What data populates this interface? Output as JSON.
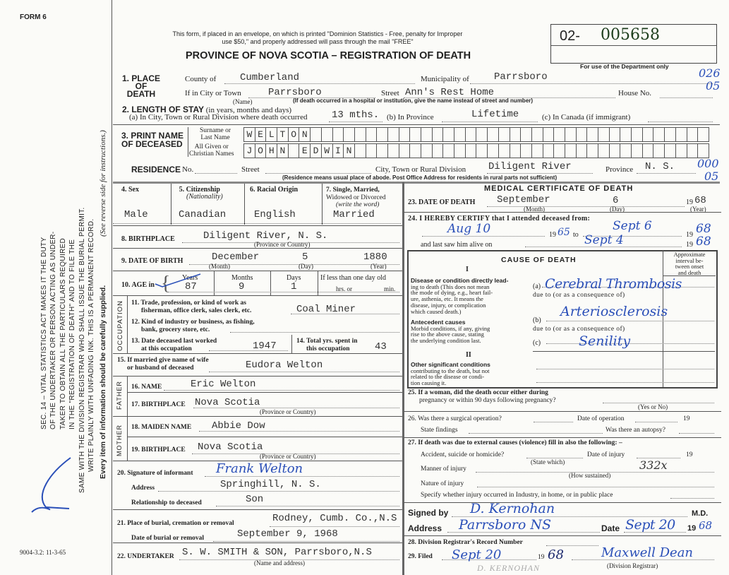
{
  "form_label": "FORM 6",
  "notice": [
    "This form, if placed in an envelope, on which is printed \"Dominion Statistics - Free, penalty for Improper",
    "use $50,\" and properly addressed will pass through the mail \"FREE\""
  ],
  "title": "PROVINCE OF NOVA SCOTIA – REGISTRATION OF DEATH",
  "registration_number": {
    "prefix": "02-",
    "number": "005658"
  },
  "department_note": "For use of the Department only",
  "margin_codes": {
    "a": "026",
    "b": "05",
    "c": "000",
    "d": "05"
  },
  "side_text": {
    "lines": [
      "SEC. 14 – VITAL STATISTICS ACT MAKES IT THE DUTY",
      "OF THE UNDERTAKER OR PERSON ACTING AS UNDER-",
      "TAKER TO OBTAIN ALL THE PARTICULARS REQUIRED",
      "IN THE \"REGISTRATION OF DEATH\" AND TO FILE THE",
      "SAME WITH THE DIVISION REGISTRAR WHO SHALL ISSUE THE BURIAL PERMIT.",
      "WRITE PLAINLY WITH UNFADING INK. THIS IS A PERMANENT RECORD."
    ],
    "every_item": "Every item of information should be carefully supplied.",
    "see_reverse": "(See reverse side for instructions.)",
    "form_code": "9004-3.2: 11-3-65"
  },
  "place_of_death": {
    "heading": [
      "1. PLACE",
      "OF",
      "DEATH"
    ],
    "county_label": "County of",
    "county": "Cumberland",
    "municipality_label": "Municipality of",
    "municipality": "Parrsboro",
    "city_label": "If in City or Town",
    "city": "Parrsboro",
    "name_note": "(Name)",
    "street_label": "Street",
    "street": "Ann's Rest Home",
    "house_label": "House No.",
    "institution_note": "(If death occurred in a hospital or institution, give the name instead of street and number)"
  },
  "length_of_stay": {
    "heading": "2. LENGTH OF STAY",
    "heading_note": "(in years, months and days)",
    "a_label": "(a) In City, Town or Rural Division where death occurred",
    "a": "13 mths.",
    "b_label": "(b) In Province",
    "b": "Lifetime",
    "c_label": "(c) In Canada (if immigrant)"
  },
  "name": {
    "heading": [
      "3. PRINT NAME",
      "OF DECEASED"
    ],
    "surname_label": [
      "Surname or",
      "Last Name"
    ],
    "given_label": [
      "All Given or",
      "Christian Names"
    ],
    "surname_letters": [
      "W",
      "E",
      "L",
      "T",
      "O",
      "N"
    ],
    "given_letters": [
      "J",
      "O",
      "H",
      "N",
      " ",
      "E",
      "D",
      "W",
      "I",
      "N"
    ]
  },
  "residence": {
    "heading": "RESIDENCE",
    "no_label": "No.",
    "street_label": "Street",
    "city_label": "City, Town or Rural Division",
    "city": "Diligent River",
    "province_label": "Province",
    "province": "N. S.",
    "note": "(Residence means usual place of abode. Post Office Address for residents in rural parts not sufficient)"
  },
  "personal": {
    "sex_label": "4. Sex",
    "sex": "Male",
    "citizenship_label": "5. Citizenship",
    "citizenship_note": "(Nationality)",
    "citizenship": "Canadian",
    "racial_label": "6. Racial Origin",
    "racial": "English",
    "marital_label": [
      "7. Single, Married,",
      "Widowed or Divorced",
      "(write the word)"
    ],
    "marital": "Married",
    "birthplace_label": "8. BIRTHPLACE",
    "birthplace": "Diligent River, N. S.",
    "prov_note": "(Province or Country)",
    "dob_label": "9. DATE OF BIRTH",
    "dob_month": "December",
    "dob_day": "5",
    "dob_year": "1880",
    "month_note": "(Month)",
    "day_note": "(Day)",
    "year_note": "(Year)",
    "age_label": "10. AGE in",
    "years_label": "Years",
    "years": "87",
    "months_label": "Months",
    "months": "9",
    "days_label": "Days",
    "days": "1",
    "less_label": "If less than one day old",
    "hrs_label": "hrs. or",
    "min_label": "min."
  },
  "occupation": {
    "side": "OCCUPATION",
    "q11": [
      "11. Trade, profession, or kind of work as",
      "fisherman, office clerk, sales clerk, etc."
    ],
    "trade": "Coal Miner",
    "q12": [
      "12. Kind of industry or business, as fishing,",
      "bank, grocery store, etc."
    ],
    "q13": [
      "13. Date deceased last worked",
      "at this occupation"
    ],
    "last_worked": "1947",
    "q14": [
      "14. Total yrs. spent in",
      "this occupation"
    ],
    "total_years": "43"
  },
  "spouse": {
    "label": [
      "15. If married give name of wife",
      "or husband of deceased"
    ],
    "name": "Eudora Welton"
  },
  "father": {
    "side": "FATHER",
    "name_label": "16. NAME",
    "name": "Eric Welton",
    "birthplace_label": "17. BIRTHPLACE",
    "birthplace": "Nova Scotia",
    "prov_note": "(Province or Country)"
  },
  "mother": {
    "side": "MOTHER",
    "name_label": "18. MAIDEN NAME",
    "name": "Abbie Dow",
    "birthplace_label": "19. BIRTHPLACE",
    "birthplace": "Nova Scotia",
    "prov_note": "(Province or Country)"
  },
  "informant": {
    "signature_label": "20. Signature of informant",
    "signature": "Frank Welton",
    "address_label": "Address",
    "address": "Springhill, N. S.",
    "relationship_label": "Relationship to deceased",
    "relationship": "Son"
  },
  "burial": {
    "place_label": "21. Place of burial, cremation or removal",
    "place": "Rodney, Cumb. Co.,N.S",
    "date_label": "Date of burial or removal",
    "date": "September 9, 1968"
  },
  "undertaker": {
    "label": "22. UNDERTAKER",
    "value": "S. W. SMITH & SON, Parrsboro,N.S",
    "note": "(Name and address)"
  },
  "medical": {
    "title": "MEDICAL CERTIFICATE OF DEATH",
    "dod_label": "23. DATE OF DEATH",
    "dod_month": "September",
    "dod_day": "6",
    "dod_year_prefix": "19",
    "dod_year": "68",
    "month_note": "(Month)",
    "day_note": "(Day)",
    "year_note": "(Year)",
    "certify_label": "24. I HEREBY CERTIFY that I attended deceased from:",
    "from": "Aug 10",
    "from_year_prefix": "19",
    "from_year": "65",
    "to_label": "to",
    "to": "Sept 6",
    "to_year_prefix": "19",
    "to_year": "68",
    "last_saw_label": "and last saw him alive on",
    "last_saw": "Sept 4",
    "last_saw_year_prefix": "19",
    "last_saw_year": "68"
  },
  "cause": {
    "title": "CAUSE OF DEATH",
    "part1": "I",
    "part2": "II",
    "interval_label": [
      "Approximate",
      "interval be-",
      "tween onset",
      "and death"
    ],
    "direct_heading": "Disease or condition directly lead-",
    "direct_text": [
      "ing to death (This does not mean",
      "the mode of dying, e.g., heart fail-",
      "ure, asthenia, etc. It means the",
      "disease, injury, or complication",
      "which caused death.)"
    ],
    "antecedent_heading": "Antecedent causes",
    "antecedent_text": [
      "Morbid conditions, if any, giving",
      "rise to the above cause, stating",
      "the underlying condition last."
    ],
    "other_heading": "Other significant conditions",
    "other_text": [
      "contributing to the death, but not",
      "related to the disease or condi-",
      "tion causing it."
    ],
    "a_label": "(a)",
    "a": "Cerebral Thrombosis",
    "b_label": "(b)",
    "b": "Arteriosclerosis",
    "c_label": "(c)",
    "c": "Senility",
    "due_to": "due to (or as a consequence of)"
  },
  "q25": {
    "label": [
      "25. If a woman, did the death occur either during",
      "pregnancy or within 90 days following pregnancy?"
    ],
    "note": "(Yes or No)"
  },
  "q26": {
    "label": "26. Was there a surgical operation?",
    "date_label": "Date of operation",
    "year_prefix": "19",
    "findings_label": "State findings",
    "autopsy_label": "Was there an autopsy?"
  },
  "q27": {
    "label": "27. If death was due to external causes (violence) fill in also the following: –",
    "accident_label": "Accident, suicide or homicide?",
    "state_note": "(State which)",
    "injury_date_label": "Date of injury",
    "year_prefix": "19",
    "manner_label": "Manner of injury",
    "manner_code": "332x",
    "how_note": "(How sustained)",
    "nature_label": "Nature of injury",
    "specify_label": "Specify whether injury occurred in Industry, in home, or in public place"
  },
  "signature": {
    "signed_label": "Signed by",
    "signed": "D. Kernohan",
    "md": "M.D.",
    "address_label": "Address",
    "address": "Parrsboro NS",
    "date_label": "Date",
    "date": "Sept 20",
    "year_prefix": "19",
    "year": "68"
  },
  "registrar": {
    "record_label": "28. Division Registrar's Record Number",
    "filed_label": "29. Filed",
    "filed": "Sept 20",
    "year_prefix": "19",
    "year": "68",
    "registrar_signature": "Maxwell Dean",
    "registrar_note": "(Division Registrar)",
    "stamp": "D. KERNOHAN"
  }
}
